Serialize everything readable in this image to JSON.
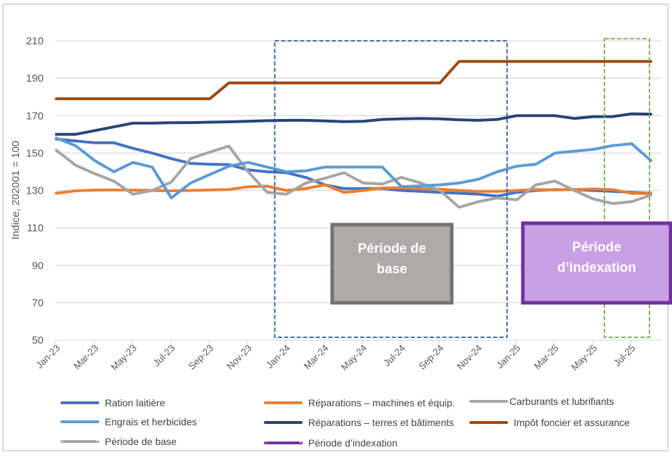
{
  "chart_data": {
    "type": "line",
    "title": "",
    "xlabel": "",
    "ylabel": "Indice, 202001 = 100",
    "ylim": [
      50,
      210
    ],
    "yticks": [
      50,
      70,
      90,
      110,
      130,
      150,
      170,
      190,
      210
    ],
    "grid": true,
    "x": [
      "Jan-23",
      "Feb-23",
      "Mar-23",
      "Apr-23",
      "May-23",
      "Jun-23",
      "Jul-23",
      "Aug-23",
      "Sep-23",
      "Oct-23",
      "Nov-23",
      "Dec-23",
      "Jan-24",
      "Feb-24",
      "Mar-24",
      "Apr-24",
      "May-24",
      "Jun-24",
      "Jul-24",
      "Aug-24",
      "Sep-24",
      "Oct-24",
      "Nov-24",
      "Dec-24",
      "Jan-25",
      "Feb-25",
      "Mar-25",
      "Apr-25",
      "May-25",
      "Jun-25",
      "Jul-25",
      "Aug-25"
    ],
    "xtick_labels": [
      "Jan-23",
      "Mar-23",
      "May-23",
      "Jul-23",
      "Sep-23",
      "Nov-23",
      "Jan-24",
      "Mar-24",
      "May-24",
      "Jul-24",
      "Sep-24",
      "Nov-24",
      "Jan-25",
      "Mar-25",
      "May-25",
      "Jul-25"
    ],
    "series": [
      {
        "name": "Ration laitière",
        "color": "#4472c4",
        "values": [
          157.5,
          156.5,
          155.5,
          155.5,
          152.5,
          150,
          147,
          144.5,
          144,
          143.8,
          141,
          140,
          139.5,
          137,
          133,
          131,
          131,
          131,
          130,
          129.5,
          129,
          128.5,
          128,
          127,
          129,
          130,
          130.5,
          130.5,
          130,
          129.5,
          129,
          128.5
        ]
      },
      {
        "name": "Réparations – machines et équip.",
        "color": "#ed7d31",
        "values": [
          128.5,
          129.8,
          130.2,
          130.3,
          130.2,
          130,
          129.8,
          130,
          130.3,
          130.5,
          132,
          132.3,
          130,
          131,
          133,
          129,
          130,
          131.3,
          131.5,
          131,
          130.7,
          130,
          129.5,
          129.5,
          130,
          130.5,
          130.3,
          130.5,
          130.8,
          130.5,
          128.5,
          128.3
        ]
      },
      {
        "name": "Carburants et lubrifiants",
        "color": "#a5a5a5",
        "values": [
          151.5,
          143.5,
          139,
          135,
          128,
          130,
          134.5,
          147,
          150.5,
          153.7,
          140,
          129,
          128,
          134,
          136.5,
          139.5,
          134,
          133.5,
          137,
          134,
          130,
          121,
          124,
          126,
          125,
          133,
          135,
          130,
          125.5,
          123,
          124,
          127.5
        ]
      },
      {
        "name": "Engrais et herbicides",
        "color": "#5b9bd5",
        "values": [
          158,
          154,
          146,
          140,
          145,
          142.5,
          126,
          134,
          138.5,
          143,
          145,
          142.5,
          140,
          140.5,
          142.5,
          142.5,
          142.5,
          142.5,
          132,
          132.5,
          133,
          134,
          136,
          140,
          143,
          144,
          150,
          151,
          152,
          154,
          155,
          146
        ]
      },
      {
        "name": "Réparations – terres et bâtiments",
        "color": "#264478",
        "values": [
          160,
          160,
          162,
          164,
          166,
          166,
          166.2,
          166.3,
          166.5,
          166.7,
          167,
          167.3,
          167.5,
          167.5,
          167.2,
          166.8,
          167,
          168,
          168.3,
          168.5,
          168.3,
          167.8,
          167.5,
          168,
          170,
          170,
          170,
          168.5,
          169.5,
          169.5,
          171,
          170.8
        ]
      },
      {
        "name": "Impôt foncier et assurance",
        "color": "#9e480e",
        "values": [
          179,
          179,
          179,
          179,
          179,
          179,
          179,
          179,
          179,
          187.5,
          187.5,
          187.5,
          187.5,
          187.5,
          187.5,
          187.5,
          187.5,
          187.5,
          187.5,
          187.5,
          187.5,
          199,
          199,
          199,
          199,
          199,
          199,
          199,
          199,
          199,
          199,
          199
        ]
      }
    ],
    "regions": [
      {
        "name": "Période de base",
        "from": "Jan-24",
        "to": "Dec-24",
        "y_range": [
          50,
          210
        ],
        "border_color": "#2f5597",
        "style": "dashed"
      },
      {
        "name": "Période d’indexation",
        "from": "Jun-25",
        "to": "Aug-25",
        "y_range": [
          50,
          210
        ],
        "border_color": "#70ad47",
        "style": "dashed"
      }
    ],
    "annotations": [
      {
        "text": "Période de base",
        "fill": "#aeaaaa",
        "border": "#757171",
        "text_color": "#ffffff"
      },
      {
        "text": "Période d’indexation",
        "fill": "#c9a0e3",
        "border": "#7030a0",
        "text_color": "#ffffff"
      }
    ],
    "legend": {
      "placement": "bottom",
      "items": [
        {
          "label": "Ration laitière",
          "color": "#4472c4",
          "style": "solid"
        },
        {
          "label": "Réparations – machines et équip.",
          "color": "#ed7d31",
          "style": "solid"
        },
        {
          "label": "Carburants et lubrifiants",
          "color": "#a5a5a5",
          "style": "solid"
        },
        {
          "label": "Engrais et herbicides",
          "color": "#5b9bd5",
          "style": "solid"
        },
        {
          "label": "Réparations – terres et bâtiments",
          "color": "#264478",
          "style": "solid"
        },
        {
          "label": "Impôt foncier et assurance",
          "color": "#9e480e",
          "style": "solid"
        },
        {
          "label": "Période de base",
          "color": "#a5a5a5",
          "style": "dashed"
        },
        {
          "label": "Période d’indexation",
          "color": "#7030a0",
          "style": "dashed"
        }
      ]
    }
  }
}
